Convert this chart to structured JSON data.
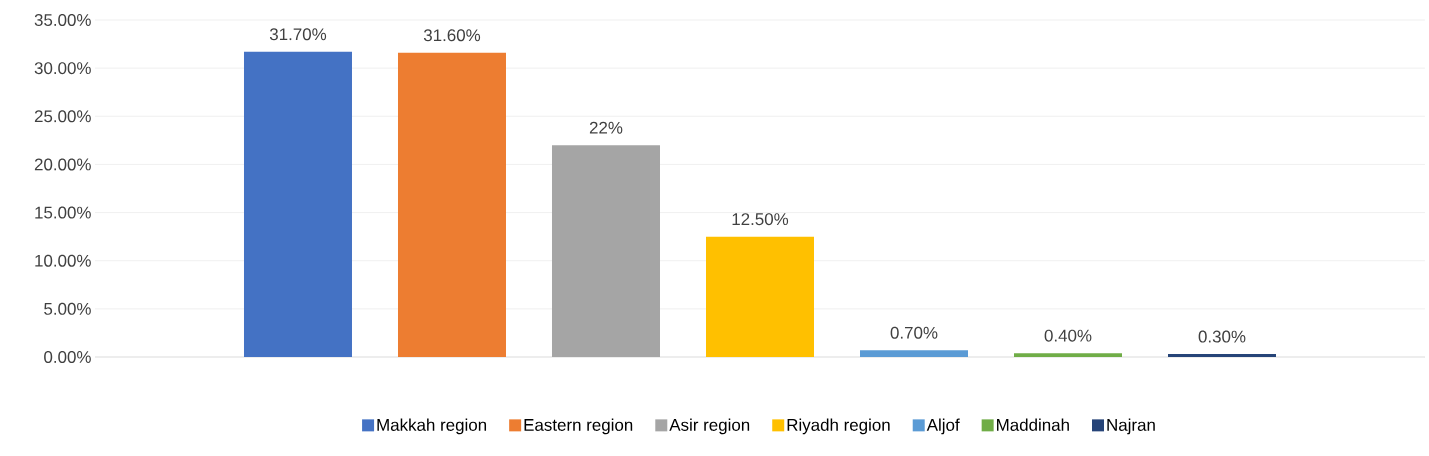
{
  "chart_data": {
    "type": "bar",
    "categories": [
      null
    ],
    "series": [
      {
        "name": "Makkah region",
        "color": "#4472c4",
        "values": [
          31.7
        ],
        "value_labels": [
          "31.70%"
        ]
      },
      {
        "name": "Eastern region",
        "color": "#ed7d31",
        "values": [
          31.6
        ],
        "value_labels": [
          "31.60%"
        ]
      },
      {
        "name": "Asir region",
        "color": "#a5a5a5",
        "values": [
          22
        ],
        "value_labels": [
          "22%"
        ]
      },
      {
        "name": "Riyadh region",
        "color": "#ffc000",
        "values": [
          12.5
        ],
        "value_labels": [
          "12.50%"
        ]
      },
      {
        "name": "Aljof",
        "color": "#5b9bd5",
        "values": [
          0.7
        ],
        "value_labels": [
          "0.70%"
        ]
      },
      {
        "name": "Maddinah",
        "color": "#70ad47",
        "values": [
          0.4
        ],
        "value_labels": [
          "0.40%"
        ]
      },
      {
        "name": "Najran",
        "color": "#264478",
        "values": [
          0.3
        ],
        "value_labels": [
          "0.30%"
        ]
      }
    ],
    "ylim": [
      0,
      35
    ],
    "yticks": [
      {
        "value": 0,
        "label": "0.00%"
      },
      {
        "value": 5,
        "label": "5.00%"
      },
      {
        "value": 10,
        "label": "10.00%"
      },
      {
        "value": 15,
        "label": "15.00%"
      },
      {
        "value": 20,
        "label": "20.00%"
      },
      {
        "value": 25,
        "label": "25.00%"
      },
      {
        "value": 30,
        "label": "30.00%"
      },
      {
        "value": 35,
        "label": "35.00%"
      }
    ],
    "grid": "y",
    "legend": "bottom"
  }
}
